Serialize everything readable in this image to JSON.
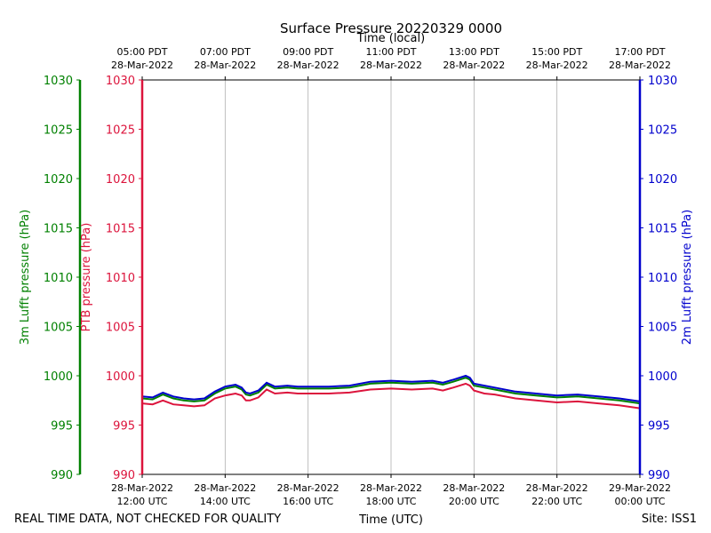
{
  "chart_data": {
    "type": "line",
    "title": "Surface Pressure 20220329 0000",
    "xlabel_bottom": "Time (UTC)",
    "xlabel_top": "Time (local)",
    "footer_left": "REAL TIME DATA, NOT CHECKED FOR QUALITY",
    "footer_right": "Site: ISS1",
    "x_range_hours": [
      12,
      24
    ],
    "ylim": [
      990,
      1030
    ],
    "yticks": [
      990,
      995,
      1000,
      1005,
      1010,
      1015,
      1020,
      1025,
      1030
    ],
    "bottom_ticks": [
      {
        "hour": 12,
        "line1": "28-Mar-2022",
        "line2": "12:00 UTC"
      },
      {
        "hour": 14,
        "line1": "28-Mar-2022",
        "line2": "14:00 UTC"
      },
      {
        "hour": 16,
        "line1": "28-Mar-2022",
        "line2": "16:00 UTC"
      },
      {
        "hour": 18,
        "line1": "28-Mar-2022",
        "line2": "18:00 UTC"
      },
      {
        "hour": 20,
        "line1": "28-Mar-2022",
        "line2": "20:00 UTC"
      },
      {
        "hour": 22,
        "line1": "28-Mar-2022",
        "line2": "22:00 UTC"
      },
      {
        "hour": 24,
        "line1": "29-Mar-2022",
        "line2": "00:00 UTC"
      }
    ],
    "top_ticks": [
      {
        "hour": 12,
        "line1": "05:00 PDT",
        "line2": "28-Mar-2022"
      },
      {
        "hour": 14,
        "line1": "07:00 PDT",
        "line2": "28-Mar-2022"
      },
      {
        "hour": 16,
        "line1": "09:00 PDT",
        "line2": "28-Mar-2022"
      },
      {
        "hour": 18,
        "line1": "11:00 PDT",
        "line2": "28-Mar-2022"
      },
      {
        "hour": 20,
        "line1": "13:00 PDT",
        "line2": "28-Mar-2022"
      },
      {
        "hour": 22,
        "line1": "15:00 PDT",
        "line2": "28-Mar-2022"
      },
      {
        "hour": 24,
        "line1": "17:00 PDT",
        "line2": "28-Mar-2022"
      }
    ],
    "axes": [
      {
        "name": "3m-lufft-axis",
        "label": "3m Lufft pressure (hPa)",
        "color": "#008000",
        "side": "left-outer"
      },
      {
        "name": "ptb-axis",
        "label": "PTB pressure (hPa)",
        "color": "#dc143c",
        "side": "left-inner"
      },
      {
        "name": "2m-lufft-axis",
        "label": "2m Lufft pressure (hPa)",
        "color": "#0000cd",
        "side": "right"
      }
    ],
    "x": [
      12.0,
      12.25,
      12.5,
      12.75,
      13.0,
      13.25,
      13.5,
      13.75,
      14.0,
      14.25,
      14.4,
      14.5,
      14.6,
      14.8,
      15.0,
      15.2,
      15.5,
      15.75,
      16.0,
      16.5,
      17.0,
      17.5,
      18.0,
      18.5,
      19.0,
      19.25,
      19.5,
      19.8,
      19.9,
      20.0,
      20.25,
      20.5,
      21.0,
      21.5,
      22.0,
      22.5,
      23.0,
      23.5,
      24.0
    ],
    "series": [
      {
        "name": "PTB",
        "color": "#dc143c",
        "values": [
          997.2,
          997.1,
          997.5,
          997.1,
          997.0,
          996.9,
          997.0,
          997.7,
          998.0,
          998.2,
          998.0,
          997.5,
          997.5,
          997.8,
          998.6,
          998.2,
          998.3,
          998.2,
          998.2,
          998.2,
          998.3,
          998.6,
          998.7,
          998.6,
          998.7,
          998.5,
          998.8,
          999.2,
          999.0,
          998.5,
          998.2,
          998.1,
          997.7,
          997.5,
          997.3,
          997.4,
          997.2,
          997.0,
          996.7
        ]
      },
      {
        "name": "3m Lufft",
        "color": "#008000",
        "values": [
          997.7,
          997.6,
          998.1,
          997.7,
          997.5,
          997.4,
          997.5,
          998.2,
          998.7,
          998.9,
          998.6,
          998.1,
          998.0,
          998.3,
          999.1,
          998.7,
          998.8,
          998.7,
          998.7,
          998.7,
          998.8,
          999.2,
          999.3,
          999.2,
          999.3,
          999.1,
          999.4,
          999.8,
          999.6,
          999.0,
          998.8,
          998.6,
          998.2,
          998.0,
          997.8,
          997.9,
          997.7,
          997.5,
          997.2
        ]
      },
      {
        "name": "2m Lufft",
        "color": "#0000cd",
        "values": [
          997.9,
          997.8,
          998.3,
          997.9,
          997.7,
          997.6,
          997.7,
          998.4,
          998.9,
          999.1,
          998.8,
          998.3,
          998.2,
          998.5,
          999.3,
          998.9,
          999.0,
          998.9,
          998.9,
          998.9,
          999.0,
          999.4,
          999.5,
          999.4,
          999.5,
          999.3,
          999.6,
          1000.0,
          999.8,
          999.2,
          999.0,
          998.8,
          998.4,
          998.2,
          998.0,
          998.1,
          997.9,
          997.7,
          997.4
        ]
      }
    ]
  }
}
